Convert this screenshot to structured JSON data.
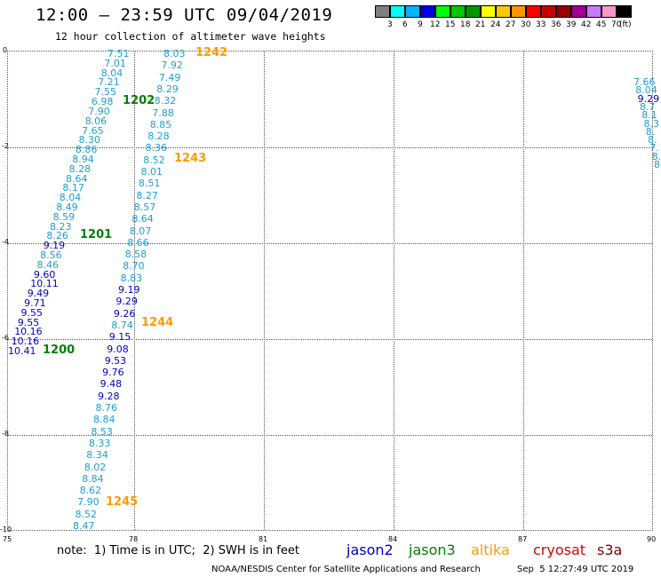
{
  "header": {
    "title": "12:00 — 23:59 UTC 09/04/2019",
    "subtitle": "12 hour collection of altimeter wave heights"
  },
  "scale": {
    "colors": [
      "#808080",
      "#00ffff",
      "#00b4ff",
      "#0000e6",
      "#00ff00",
      "#00c800",
      "#009600",
      "#ffff00",
      "#ffc800",
      "#ff9600",
      "#ff0000",
      "#c80000",
      "#960000",
      "#a00096",
      "#c878ff",
      "#ff96c8",
      "#000000"
    ],
    "labels": [
      "3",
      "6",
      "9",
      "12",
      "15",
      "18",
      "21",
      "24",
      "27",
      "30",
      "33",
      "36",
      "39",
      "42",
      "45",
      "70"
    ],
    "unit": "(ft)"
  },
  "axes": {
    "y_ticks": [
      "0",
      "-2",
      "-4",
      "-6",
      "-8",
      "-10"
    ],
    "x_ticks": [
      "75",
      "78",
      "81",
      "84",
      "87",
      "90"
    ]
  },
  "tracks": {
    "track_1242": [
      "7.51",
      "7.01",
      "8.04",
      "7.21",
      "7.55",
      "6.98",
      "7.90",
      "8.06",
      "7.65",
      "8.30",
      "8.86",
      "8.94",
      "8.28",
      "8.64",
      "8.17",
      "8.04",
      "8.49",
      "8.59",
      "8.23",
      "8.26",
      "9.19",
      "8.56",
      "8.46",
      "9.60",
      "10.11",
      "9.49",
      "9.71",
      "9.55",
      "9.55",
      "10.16",
      "10.16",
      "10.41"
    ],
    "track_1244": [
      "8.03",
      "7.92",
      "7.49",
      "8.29",
      "8.32",
      "7.88",
      "8.85",
      "8.28",
      "8.36",
      "8.52",
      "8.01",
      "8.51",
      "8.27",
      "8.57",
      "8.64",
      "8.07",
      "8.66",
      "8.58",
      "8.70",
      "8.83",
      "9.19",
      "9.29",
      "9.26",
      "8.74",
      "9.15",
      "9.08",
      "9.53",
      "9.76",
      "9.48",
      "9.28",
      "8.76",
      "8.84",
      "8.53",
      "8.33",
      "8.34",
      "8.02",
      "8.84",
      "8.62",
      "7.90",
      "8.52",
      "8.47"
    ],
    "track_right": [
      "7.66",
      "8.04",
      "9.29",
      "8.7",
      "8.1",
      "8.3",
      "8.",
      "8.",
      "7.",
      "8.",
      "8"
    ]
  },
  "times": {
    "t1242": "1242",
    "t1202": "1202",
    "t1243": "1243",
    "t1201": "1201",
    "t1244": "1244",
    "t1200": "1200",
    "t1245": "1245"
  },
  "footer": {
    "note": "note:  1) Time is in UTC;  2) SWH is in feet",
    "missions": [
      {
        "name": "jason2",
        "color": "#0000c8"
      },
      {
        "name": "jason3",
        "color": "#008000"
      },
      {
        "name": "altika",
        "color": "#ff9900"
      },
      {
        "name": "cryosat",
        "color": "#e00000"
      },
      {
        "name": "s3a",
        "color": "#800000"
      }
    ],
    "credit": "NOAA/NESDIS Center for Satellite Applications and Research",
    "credit_time": "Sep  5 12:27:49 UTC 2019"
  }
}
